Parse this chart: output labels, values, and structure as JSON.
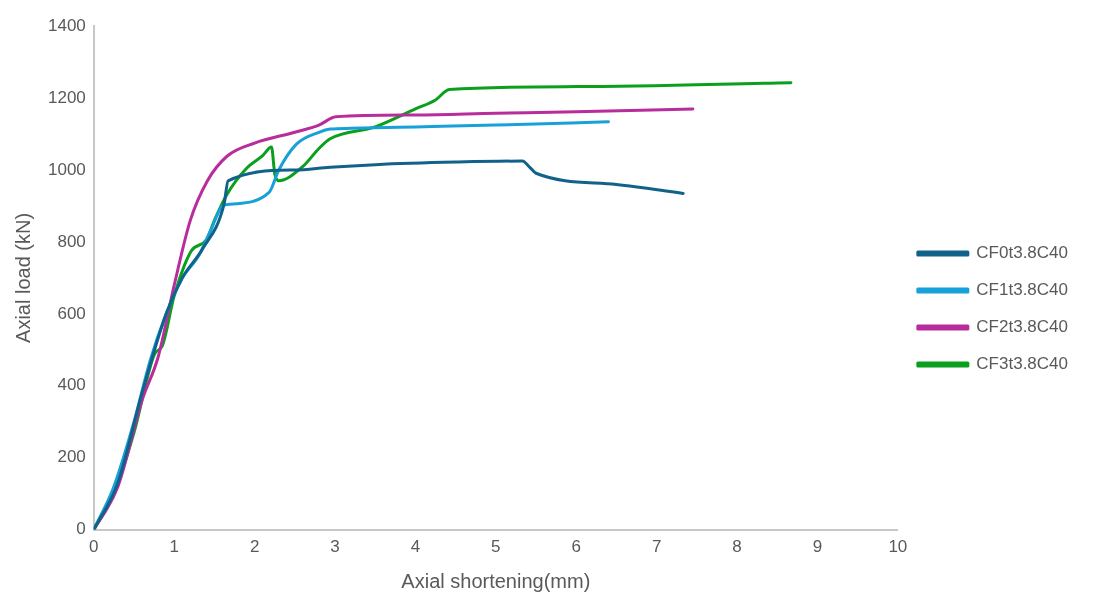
{
  "chart_data": {
    "type": "line",
    "xlabel": "Axial shortening(mm)",
    "ylabel": "Axial load (kN)",
    "xlim": [
      0,
      10
    ],
    "xticks": [
      0,
      1,
      2,
      3,
      4,
      5,
      6,
      7,
      8,
      9,
      10
    ],
    "ylim": [
      0,
      1400
    ],
    "yticks": [
      0,
      200,
      400,
      600,
      800,
      1000,
      1200,
      1400
    ],
    "grid": false,
    "legend": "right",
    "marker": "none",
    "line_style": "solid",
    "series": [
      {
        "name": "CF0t3.8C40",
        "color": "#10628a",
        "x": [
          0,
          0.3,
          0.6,
          0.9,
          1.1,
          1.35,
          1.62,
          1.67,
          2.5,
          2.94,
          3.5,
          4.5,
          5.33,
          5.42,
          5.5,
          6.5,
          7.33
        ],
        "values": [
          0,
          130,
          380,
          600,
          700,
          780,
          905,
          970,
          1000,
          1008,
          1015,
          1022,
          1025,
          1008,
          991,
          960,
          935
        ]
      },
      {
        "name": "CF1t3.8C40",
        "color": "#18a0d8",
        "x": [
          0,
          0.25,
          0.5,
          0.7,
          0.9,
          1.1,
          1.3,
          1.45,
          1.6,
          1.7,
          2.18,
          2.3,
          2.52,
          2.8,
          2.94,
          3.2,
          4,
          5,
          6.4
        ],
        "values": [
          0,
          120,
          300,
          470,
          600,
          700,
          760,
          830,
          900,
          905,
          938,
          1000,
          1072,
          1105,
          1114,
          1116,
          1120,
          1125,
          1134
        ]
      },
      {
        "name": "CF2t3.8C40",
        "color": "#b82c9c",
        "x": [
          0,
          0.3,
          0.6,
          0.8,
          1,
          1.2,
          1.41,
          1.66,
          2,
          2.5,
          2.8,
          3.01,
          4,
          5,
          6,
          7.45
        ],
        "values": [
          0,
          120,
          360,
          480,
          680,
          860,
          969,
          1039,
          1075,
          1105,
          1125,
          1148,
          1153,
          1158,
          1162,
          1170
        ]
      },
      {
        "name": "CF3t3.8C40",
        "color": "#0aa01e",
        "x": [
          0,
          0.25,
          0.5,
          0.76,
          0.85,
          1,
          1.21,
          1.4,
          1.5,
          1.65,
          1.9,
          2.1,
          2.21,
          2.25,
          2.3,
          2.6,
          2.8,
          2.94,
          3.5,
          4,
          4.25,
          4.42,
          6,
          8.67
        ],
        "values": [
          0,
          100,
          270,
          490,
          510,
          650,
          774,
          806,
          860,
          930,
          1005,
          1040,
          1064,
          990,
          970,
          1010,
          1060,
          1087,
          1120,
          1170,
          1195,
          1224,
          1232,
          1243
        ]
      }
    ]
  }
}
